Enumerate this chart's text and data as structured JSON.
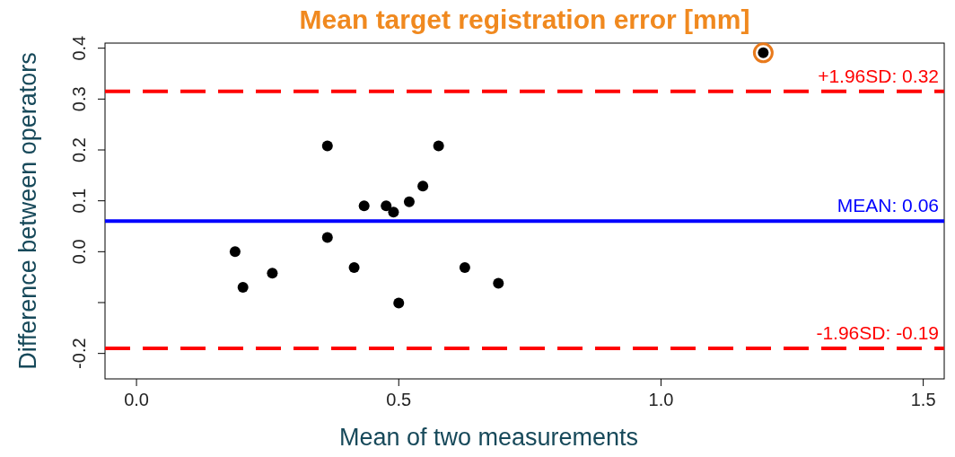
{
  "chart_data": {
    "type": "scatter",
    "title": "Mean target registration error [mm]",
    "xlabel": "Mean of two measurements",
    "ylabel": "Difference between operators",
    "x": [
      0.188,
      0.203,
      0.259,
      0.364,
      0.364,
      0.415,
      0.434,
      0.476,
      0.49,
      0.5,
      0.52,
      0.546,
      0.576,
      0.626,
      0.69,
      1.195
    ],
    "series": [
      {
        "color": "#000000",
        "values": [
          0,
          -0.07,
          -0.042,
          0.208,
          0.028,
          -0.031,
          0.09,
          0.09,
          0.078,
          -0.101,
          0.098,
          0.129,
          0.208,
          -0.031,
          -0.062,
          0.391
        ]
      }
    ],
    "marker": "circle",
    "xlim": [
      -0.06,
      1.54
    ],
    "ylim": [
      -0.25,
      0.41
    ],
    "xticks": [
      {
        "value": 0,
        "label": "0.0"
      },
      0.5,
      {
        "value": 1,
        "label": "1.0"
      },
      1.5
    ],
    "yticks": [
      {
        "value": -0.2,
        "label": "-0.2"
      },
      {
        "value": -0.1,
        "label": null
      },
      {
        "value": 0,
        "label": "0.0"
      },
      0.1,
      0.2,
      0.3,
      0.4
    ],
    "ref_lines": [
      {
        "axis": "y",
        "value": 0.315,
        "label": "+1.96SD: 0.32",
        "color": "#ff0000",
        "line_style": "dashed"
      },
      {
        "axis": "y",
        "value": 0.06,
        "label": "MEAN: 0.06",
        "color": "#0000ff",
        "line_style": "solid"
      },
      {
        "axis": "y",
        "value": -0.19,
        "label": "-1.96SD: -0.19",
        "color": "#ff0000",
        "line_style": "dashed"
      }
    ]
  }
}
